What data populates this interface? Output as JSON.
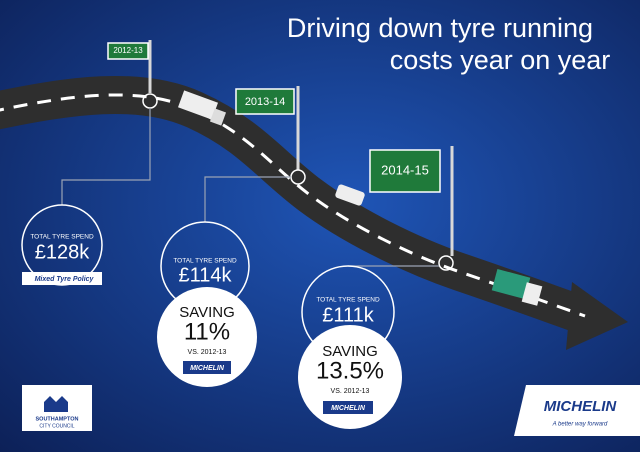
{
  "title": [
    "Driving down tyre running",
    "costs year on year"
  ],
  "years": [
    {
      "sign": "2012-13",
      "spend_label": "TOTAL TYRE SPEND",
      "spend": "£128k",
      "badge": "Mixed Tyre Policy"
    },
    {
      "sign": "2013-14",
      "spend_label": "TOTAL TYRE SPEND",
      "spend": "£114k",
      "saving_label": "SAVING",
      "saving": "11%",
      "comparison": "VS. 2012-13",
      "brand": "MICHELIN"
    },
    {
      "sign": "2014-15",
      "spend_label": "TOTAL TYRE SPEND",
      "spend": "£111k",
      "saving_label": "SAVING",
      "saving": "13.5%",
      "comparison": "VS. 2012-13",
      "brand": "MICHELIN"
    }
  ],
  "logos": {
    "council": [
      "SOUTHAMPTON",
      "CITY COUNCIL"
    ],
    "brand": "MICHELIN",
    "tagline": "A better way forward"
  }
}
